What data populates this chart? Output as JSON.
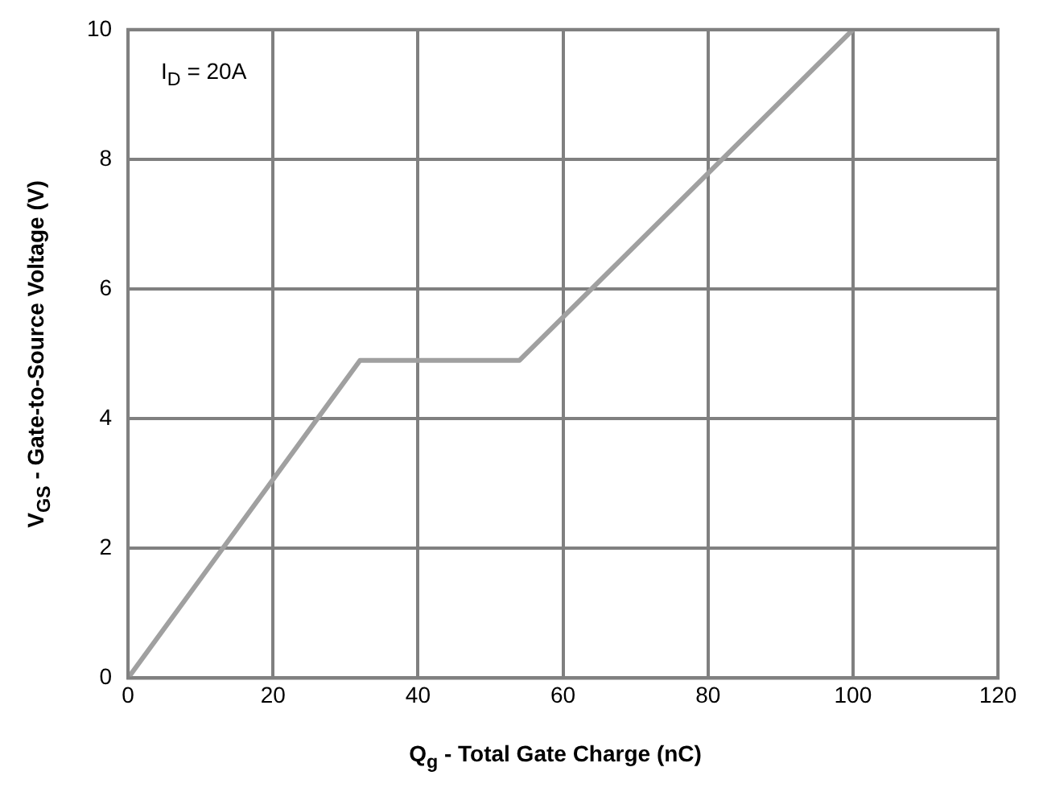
{
  "chart_data": {
    "type": "line",
    "xlabel": "Q$_{g}$ - Total Gate Charge (nC)",
    "ylabel": "V$_{GS}$ - Gate-to-Source Voltage (V)",
    "annotations": [
      "I$_{D}$ = 20A"
    ],
    "x": [
      0,
      32,
      54,
      100
    ],
    "series": [
      {
        "color": "#a0a0a0",
        "values": [
          0,
          4.9,
          4.9,
          10
        ]
      }
    ],
    "xlim": [
      0,
      120
    ],
    "xticks": [
      0,
      20,
      40,
      60,
      80,
      100,
      120
    ],
    "ylim": [
      0,
      10
    ],
    "yticks": [
      0,
      2,
      4,
      6,
      8,
      10
    ],
    "grid": true,
    "legend": false,
    "marker": "none",
    "line_style": "solid"
  }
}
